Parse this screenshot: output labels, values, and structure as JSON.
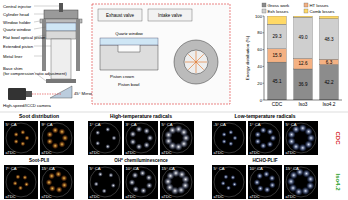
{
  "schematic": {
    "labels": [
      "Central injector",
      "Cylinder head",
      "Window holder",
      "Quartz window",
      "Flat bowl optical piston",
      "Extended piston",
      "Metal liner",
      "45° Mirror",
      "Base shim (for compression ratio adjustment)",
      "High-speed/ICCD camera"
    ]
  },
  "inset": {
    "labels": [
      "Exhaust valve",
      "Intake valve",
      "Piston crown",
      "Piston bowl",
      "Quartz window"
    ]
  },
  "chart_data": {
    "type": "bar",
    "stacked": true,
    "ylabel": "Energy distribution (%)",
    "categories": [
      "CDC",
      "Iso3",
      "Iso4.2"
    ],
    "ylim": [
      0,
      100
    ],
    "yticks": [
      0,
      20,
      40,
      60,
      80,
      100
    ],
    "legend": "top",
    "series": [
      {
        "name": "Gross work",
        "color": "#8c8c8c",
        "values": [
          45.1,
          36.9,
          42.2
        ],
        "data_labels": true
      },
      {
        "name": "HT losses",
        "color": "#f4b183",
        "values": [
          15.9,
          12.6,
          6.3
        ],
        "data_labels": true
      },
      {
        "name": "Exh losses",
        "color": "#cfcfcf",
        "values": [
          29.3,
          49.0,
          48.3
        ],
        "value_labels": [
          "29.3",
          "49.0",
          "48.3"
        ],
        "data_labels": true
      },
      {
        "name": "Comb losses",
        "color": "#ffd966",
        "values": [
          9.7,
          1.5,
          3.2
        ],
        "data_labels": false
      }
    ]
  },
  "image_panels": {
    "suffix": "aTDC",
    "groups": [
      {
        "title": "Soot distribution",
        "technique": "Soot-PLII",
        "rows": [
          [
            "5° CA",
            "9° CA"
          ],
          [
            "7° CA",
            "15° CA"
          ]
        ]
      },
      {
        "title": "High-temperature radicals",
        "technique": "OH* chemiluminescence",
        "rows": [
          [
            "1° CA",
            "3° CA",
            "5° CA"
          ],
          [
            "5° CA",
            "10° CA",
            "15° CA"
          ]
        ]
      },
      {
        "title": "Low-temperature radicals",
        "technique": "HCHO-PLIF",
        "rows": [
          [
            "-5° CA",
            "1° CA",
            "5° CA"
          ],
          [
            "5° CA",
            "10° CA",
            "15° CA"
          ]
        ]
      }
    ],
    "row_labels": [
      {
        "text": "CDC",
        "color": "#d62728"
      },
      {
        "text": "Iso4.2",
        "color": "#2ca02c"
      }
    ]
  }
}
